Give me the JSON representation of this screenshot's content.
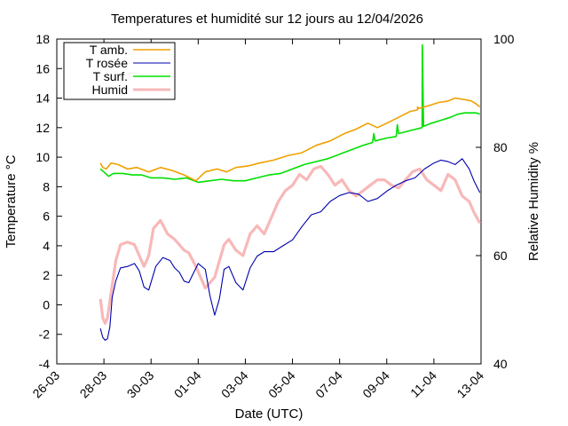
{
  "chart_data": {
    "type": "line",
    "title": "Temperatures et humidité sur 12 jours au 12/04/2026",
    "xlabel": "Date (UTC)",
    "ylabel": "Temperature °C",
    "y2label": "Relative Humidity %",
    "x_ticks": [
      "26-03",
      "28-03",
      "30-03",
      "01-04",
      "03-04",
      "05-04",
      "07-04",
      "09-04",
      "11-04",
      "13-04"
    ],
    "y_ticks": [
      "-4",
      "-2",
      "0",
      "2",
      "4",
      "6",
      "8",
      "10",
      "12",
      "14",
      "16",
      "18"
    ],
    "y2_ticks": [
      "40",
      "60",
      "80",
      "100"
    ],
    "ylim": [
      -4,
      18
    ],
    "y2lim": [
      40,
      100
    ],
    "xlim_days": [
      0,
      18
    ],
    "legend_position": "top-left",
    "grid": false,
    "series": [
      {
        "name": "T amb.",
        "color": "#f0a000",
        "axis": "left",
        "x": [
          1.85,
          1.95,
          2.1,
          2.3,
          2.6,
          3.0,
          3.4,
          3.9,
          4.4,
          4.9,
          5.4,
          5.9,
          6.3,
          6.8,
          7.2,
          7.6,
          8.1,
          8.6,
          9.2,
          9.8,
          10.4,
          11.0,
          11.6,
          12.2,
          12.7,
          13.2,
          13.6,
          14.0,
          14.5,
          15.0,
          15.3,
          15.31,
          15.35,
          15.8,
          16.2,
          16.6,
          16.9,
          17.3,
          17.6,
          17.8,
          17.95
        ],
        "y": [
          9.6,
          9.3,
          9.2,
          9.6,
          9.5,
          9.2,
          9.3,
          9.0,
          9.3,
          9.1,
          8.8,
          8.4,
          9.0,
          9.2,
          9.0,
          9.3,
          9.4,
          9.6,
          9.8,
          10.1,
          10.3,
          10.8,
          11.1,
          11.6,
          11.9,
          12.3,
          12.0,
          12.3,
          12.7,
          13.1,
          13.2,
          13.4,
          13.3,
          13.5,
          13.7,
          13.8,
          14.0,
          13.9,
          13.8,
          13.6,
          13.4
        ]
      },
      {
        "name": "T rosée",
        "color": "#0000b0",
        "axis": "left",
        "x": [
          1.85,
          1.95,
          2.05,
          2.15,
          2.25,
          2.35,
          2.5,
          2.7,
          3.0,
          3.3,
          3.5,
          3.7,
          3.9,
          4.2,
          4.5,
          4.8,
          5.0,
          5.2,
          5.4,
          5.6,
          6.0,
          6.3,
          6.5,
          6.7,
          6.9,
          7.1,
          7.3,
          7.6,
          7.9,
          8.2,
          8.5,
          8.8,
          9.2,
          9.6,
          10.0,
          10.4,
          10.8,
          11.2,
          11.6,
          12.0,
          12.4,
          12.8,
          13.2,
          13.6,
          14.0,
          14.4,
          14.8,
          15.2,
          15.6,
          16.0,
          16.3,
          16.6,
          16.9,
          17.2,
          17.5,
          17.7,
          17.95
        ],
        "y": [
          -1.6,
          -2.2,
          -2.4,
          -2.3,
          -1.5,
          0.5,
          1.6,
          2.5,
          2.6,
          2.8,
          2.3,
          1.2,
          1.0,
          2.6,
          3.2,
          3.0,
          2.5,
          2.2,
          1.6,
          1.5,
          2.8,
          2.4,
          0.6,
          -0.7,
          0.4,
          2.4,
          2.6,
          1.5,
          1.0,
          2.5,
          3.3,
          3.6,
          3.6,
          4.0,
          4.4,
          5.3,
          6.1,
          6.3,
          7.0,
          7.4,
          7.6,
          7.5,
          7.0,
          7.2,
          7.7,
          8.1,
          8.4,
          8.6,
          9.2,
          9.6,
          9.8,
          9.7,
          9.5,
          9.9,
          9.2,
          8.4,
          7.6
        ]
      },
      {
        "name": "T surf.",
        "color": "#00e000",
        "axis": "left",
        "x": [
          1.85,
          2.0,
          2.2,
          2.4,
          2.8,
          3.2,
          3.6,
          4.0,
          4.5,
          5.0,
          5.5,
          6.0,
          6.5,
          7.0,
          7.5,
          8.0,
          8.5,
          9.0,
          9.5,
          10.0,
          10.5,
          11.0,
          11.5,
          12.0,
          12.5,
          13.0,
          13.4,
          13.45,
          13.5,
          14.0,
          14.4,
          14.45,
          14.5,
          15.0,
          15.5,
          15.51,
          15.56,
          15.9,
          16.3,
          16.7,
          17.0,
          17.3,
          17.6,
          17.8,
          17.95
        ],
        "y": [
          9.2,
          9.0,
          8.7,
          8.9,
          8.9,
          8.8,
          8.8,
          8.6,
          8.6,
          8.5,
          8.6,
          8.3,
          8.4,
          8.5,
          8.4,
          8.4,
          8.6,
          8.8,
          8.9,
          9.2,
          9.5,
          9.7,
          9.9,
          10.2,
          10.5,
          10.8,
          11.0,
          11.6,
          11.1,
          11.3,
          11.4,
          12.2,
          11.6,
          11.8,
          12.0,
          17.6,
          12.1,
          12.3,
          12.5,
          12.7,
          12.9,
          13.0,
          13.0,
          13.0,
          12.9
        ]
      },
      {
        "name": "Humid",
        "color": "#f8b8b8",
        "axis": "right",
        "x": [
          1.85,
          1.95,
          2.05,
          2.15,
          2.3,
          2.5,
          2.7,
          3.0,
          3.3,
          3.5,
          3.7,
          3.9,
          4.1,
          4.4,
          4.7,
          5.0,
          5.2,
          5.4,
          5.6,
          5.9,
          6.1,
          6.3,
          6.5,
          6.7,
          6.9,
          7.1,
          7.3,
          7.6,
          7.9,
          8.2,
          8.5,
          8.8,
          9.1,
          9.4,
          9.7,
          10.0,
          10.3,
          10.6,
          10.9,
          11.2,
          11.5,
          11.8,
          12.1,
          12.4,
          12.7,
          13.0,
          13.3,
          13.6,
          13.9,
          14.2,
          14.5,
          14.8,
          15.1,
          15.4,
          15.7,
          16.0,
          16.3,
          16.6,
          16.9,
          17.2,
          17.5,
          17.7,
          17.95
        ],
        "y": [
          52,
          48.5,
          47.5,
          48.5,
          53,
          59,
          62,
          62.5,
          62,
          60,
          58,
          60,
          65,
          66.5,
          64,
          63,
          62,
          61,
          60.5,
          58,
          56,
          54,
          55,
          56,
          59,
          62,
          63,
          61,
          60,
          64,
          65.5,
          64,
          67,
          70,
          72,
          73,
          75,
          74,
          76,
          76.5,
          75,
          73,
          74,
          72,
          71,
          72,
          73,
          74,
          74,
          73,
          72.5,
          74,
          75.5,
          76,
          74,
          73,
          72,
          75,
          74,
          71,
          70,
          68,
          66
        ]
      }
    ]
  }
}
